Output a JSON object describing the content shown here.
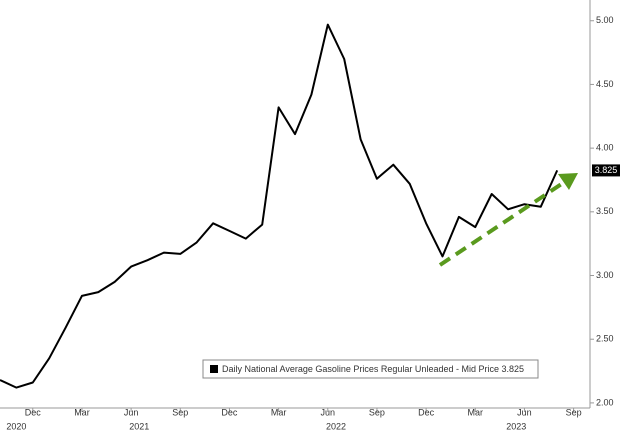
{
  "chart_data": {
    "type": "line",
    "x": [
      "2020-10",
      "2020-11",
      "2020-12",
      "2021-01",
      "2021-02",
      "2021-03",
      "2021-04",
      "2021-05",
      "2021-06",
      "2021-07",
      "2021-08",
      "2021-09",
      "2021-10",
      "2021-11",
      "2021-12",
      "2022-01",
      "2022-02",
      "2022-03",
      "2022-04",
      "2022-05",
      "2022-06",
      "2022-07",
      "2022-08",
      "2022-09",
      "2022-10",
      "2022-11",
      "2022-12",
      "2023-01",
      "2023-02",
      "2023-03",
      "2023-04",
      "2023-05",
      "2023-06",
      "2023-07",
      "2023-08"
    ],
    "series": [
      {
        "name": "Daily National Average Gasoline Prices Regular Unleaded - Mid Price 3.825",
        "color": "#000000",
        "values": [
          2.18,
          2.12,
          2.16,
          2.35,
          2.59,
          2.84,
          2.87,
          2.95,
          3.07,
          3.12,
          3.18,
          3.17,
          3.26,
          3.41,
          3.35,
          3.29,
          3.4,
          4.32,
          4.11,
          4.42,
          4.97,
          4.7,
          4.07,
          3.76,
          3.87,
          3.72,
          3.41,
          3.15,
          3.46,
          3.38,
          3.64,
          3.52,
          3.56,
          3.54,
          3.825
        ]
      }
    ],
    "last_value": 3.825,
    "xlim": [
      "2020-10",
      "2023-10"
    ],
    "xticks": [
      {
        "value": "2020-12",
        "label": "Dec"
      },
      {
        "value": "2021-03",
        "label": "Mar"
      },
      {
        "value": "2021-06",
        "label": "Jun"
      },
      {
        "value": "2021-09",
        "label": "Sep"
      },
      {
        "value": "2021-12",
        "label": "Dec"
      },
      {
        "value": "2022-03",
        "label": "Mar"
      },
      {
        "value": "2022-06",
        "label": "Jun"
      },
      {
        "value": "2022-09",
        "label": "Sep"
      },
      {
        "value": "2022-12",
        "label": "Dec"
      },
      {
        "value": "2023-03",
        "label": "Mar"
      },
      {
        "value": "2023-06",
        "label": "Jun"
      },
      {
        "value": "2023-09",
        "label": "Sep"
      }
    ],
    "years": [
      "2020",
      "2021",
      "2022",
      "2023"
    ],
    "ylim": [
      1.96,
      5.1
    ],
    "yticks": [
      {
        "value": 2,
        "label": "2.00"
      },
      {
        "value": 2.5,
        "label": "2.50"
      },
      {
        "value": 3,
        "label": "3.00"
      },
      {
        "value": 3.5,
        "label": "3.50"
      },
      {
        "value": 4,
        "label": "4.00"
      },
      {
        "value": 4.5,
        "label": "4.50"
      },
      {
        "value": 5,
        "label": "5.00"
      }
    ]
  }
}
